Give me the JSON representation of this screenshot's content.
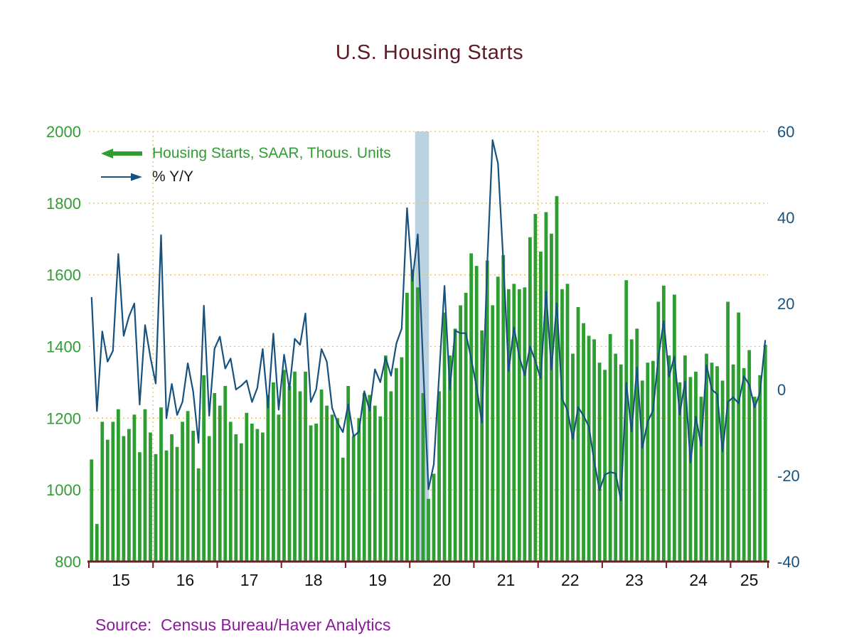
{
  "title": "U.S. Housing Starts",
  "source": "Source:  Census Bureau/Haver Analytics",
  "legend": {
    "bars_label": "Housing Starts, SAAR, Thous. Units",
    "line_label": "% Y/Y"
  },
  "colors": {
    "title": "#5e1a24",
    "bars": "#2f9e32",
    "line": "#17527e",
    "grid": "#e9c050",
    "axis": "#6f1f2a",
    "recession_band": "#bdd2e0",
    "source": "#8a1a9b",
    "x_labels": "#111111",
    "line_legend_text": "#1a1a1a"
  },
  "chart_data": {
    "type": "bar+line",
    "title": "U.S. Housing Starts",
    "x_start": "2015-01",
    "x_end": "2025-07",
    "x_tick_labels": [
      "15",
      "16",
      "17",
      "18",
      "19",
      "20",
      "21",
      "22",
      "23",
      "24",
      "25"
    ],
    "left_axis": {
      "label": "Housing Starts, SAAR, Thous. Units",
      "min": 800,
      "max": 2000,
      "ticks": [
        800,
        1000,
        1200,
        1400,
        1600,
        1800,
        2000
      ]
    },
    "right_axis": {
      "label": "% Y/Y",
      "min": -40,
      "max": 60,
      "ticks": [
        -40,
        -20,
        0,
        20,
        40,
        60
      ]
    },
    "grid": "dotted",
    "vertical_gridlines": [
      "2016-01",
      "2022-01"
    ],
    "recession_band": {
      "from": "2020-02",
      "to": "2020-04"
    },
    "series": [
      {
        "name": "Housing Starts, SAAR, Thous. Units",
        "type": "bar",
        "axis": "left",
        "color": "#2f9e32",
        "values": [
          1085,
          905,
          1190,
          1140,
          1190,
          1225,
          1150,
          1170,
          1210,
          1105,
          1225,
          1160,
          1100,
          1230,
          1110,
          1155,
          1120,
          1190,
          1220,
          1165,
          1060,
          1320,
          1150,
          1270,
          1235,
          1290,
          1190,
          1155,
          1130,
          1215,
          1185,
          1170,
          1160,
          1265,
          1300,
          1210,
          1335,
          1290,
          1330,
          1275,
          1330,
          1180,
          1185,
          1280,
          1235,
          1210,
          1200,
          1090,
          1290,
          1150,
          1200,
          1270,
          1265,
          1235,
          1205,
          1375,
          1275,
          1340,
          1370,
          1550,
          1615,
          1565,
          1270,
          975,
          1045,
          1275,
          1495,
          1375,
          1450,
          1515,
          1550,
          1660,
          1625,
          1445,
          1640,
          1515,
          1595,
          1655,
          1560,
          1575,
          1560,
          1565,
          1705,
          1770,
          1665,
          1775,
          1715,
          1820,
          1560,
          1575,
          1380,
          1510,
          1465,
          1430,
          1420,
          1355,
          1335,
          1435,
          1380,
          1350,
          1585,
          1420,
          1450,
          1305,
          1355,
          1360,
          1525,
          1570,
          1375,
          1545,
          1300,
          1375,
          1315,
          1330,
          1260,
          1380,
          1355,
          1345,
          1305,
          1525,
          1350,
          1495,
          1340,
          1390,
          1260,
          1320,
          1405
        ]
      },
      {
        "name": "% Y/Y",
        "type": "line",
        "axis": "right",
        "color": "#17527e",
        "values": [
          21.5,
          -5.0,
          13.5,
          6.5,
          9.0,
          31.5,
          12.5,
          17.0,
          20.0,
          -3.5,
          15.0,
          7.5,
          1.4,
          35.9,
          -6.7,
          1.3,
          -5.9,
          -2.9,
          6.1,
          -0.4,
          -12.4,
          19.5,
          -6.1,
          9.5,
          12.3,
          4.9,
          7.2,
          0.0,
          0.9,
          2.1,
          -2.9,
          0.4,
          9.4,
          -4.2,
          13.0,
          -4.7,
          8.1,
          0.0,
          11.8,
          10.4,
          17.7,
          -2.9,
          0.0,
          9.4,
          6.5,
          -4.3,
          -7.7,
          -9.9,
          -3.4,
          -10.9,
          -9.8,
          -0.4,
          -4.9,
          4.7,
          1.7,
          7.4,
          3.2,
          10.7,
          14.2,
          42.2,
          25.2,
          36.1,
          5.8,
          -23.2,
          -17.4,
          3.2,
          24.1,
          0.0,
          13.7,
          13.1,
          13.1,
          7.1,
          0.6,
          -7.7,
          29.1,
          58.0,
          52.6,
          29.8,
          4.3,
          14.5,
          7.6,
          3.3,
          10.0,
          6.6,
          2.5,
          22.8,
          4.6,
          20.1,
          -2.2,
          -4.8,
          -11.5,
          -4.1,
          -6.1,
          -8.6,
          -16.7,
          -23.4,
          -19.8,
          -19.2,
          -19.5,
          -25.8,
          1.6,
          -9.8,
          5.1,
          -13.6,
          -7.5,
          -4.9,
          7.4,
          15.9,
          3.0,
          7.7,
          -5.8,
          1.9,
          -17.0,
          -6.3,
          -13.1,
          5.7,
          0.0,
          -1.1,
          -14.4,
          -2.9,
          -1.8,
          -3.2,
          3.1,
          1.1,
          -4.2,
          -0.8,
          11.5
        ]
      }
    ]
  }
}
